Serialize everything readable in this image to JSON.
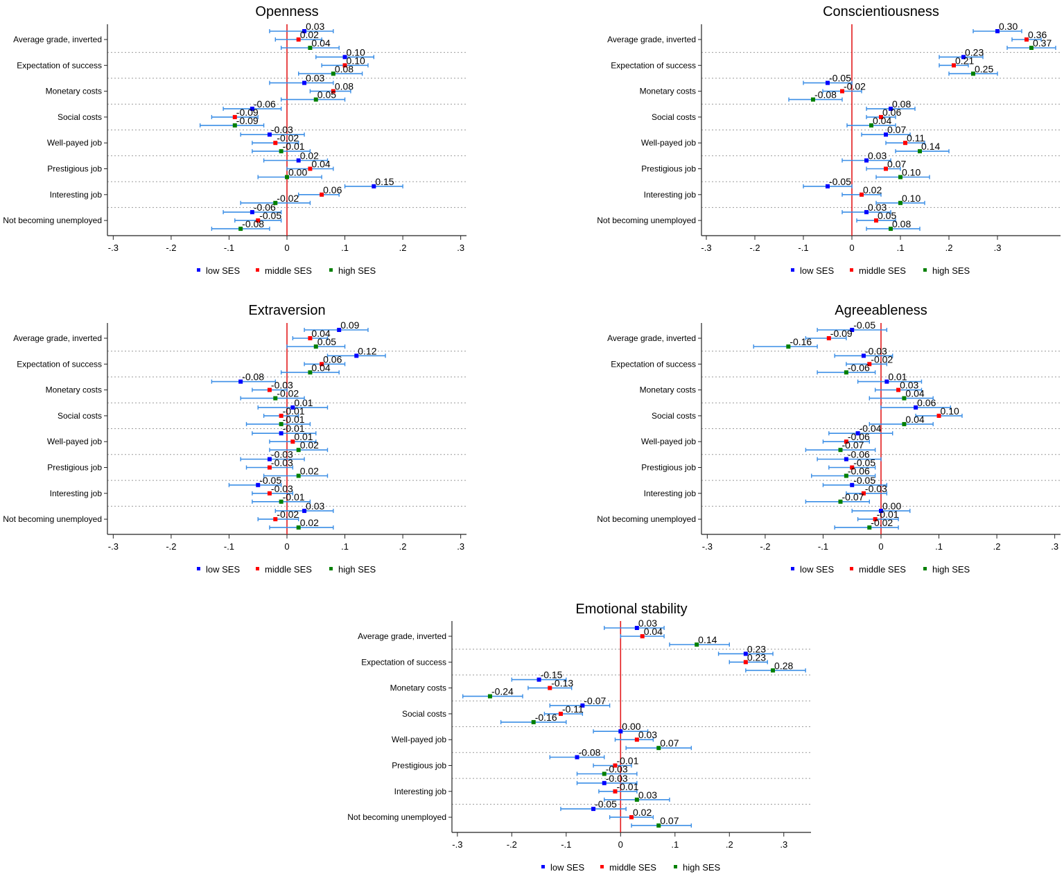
{
  "series_colors": {
    "low SES": "#0000ff",
    "middle SES": "#ff0000",
    "high SES": "#008000"
  },
  "ci_color": "#3a8ee6",
  "zero_line_color": "#e31a1c",
  "chart_data": [
    {
      "type": "scatter",
      "title": "Openness",
      "categories": [
        "Average grade, inverted",
        "Expectation of success",
        "Monetary costs",
        "Social costs",
        "Well-payed job",
        "Prestigious job",
        "Interesting job",
        "Not becoming unemployed"
      ],
      "xticks": [
        "-.3",
        "-.2",
        "-.1",
        "0",
        ".1",
        ".2",
        ".3"
      ],
      "xtick_values": [
        -0.3,
        -0.2,
        -0.1,
        0,
        0.1,
        0.2,
        0.3
      ],
      "xlim": [
        -0.31,
        0.31
      ],
      "legend": [
        "low SES",
        "middle SES",
        "high SES"
      ],
      "legend_position": "bottom",
      "series": [
        {
          "name": "low SES",
          "values": [
            0.03,
            0.1,
            0.03,
            -0.06,
            -0.03,
            0.02,
            0.15,
            -0.06
          ],
          "ci": [
            [
              -0.03,
              0.08
            ],
            [
              0.05,
              0.15
            ],
            [
              -0.03,
              0.08
            ],
            [
              -0.11,
              -0.01
            ],
            [
              -0.08,
              0.03
            ],
            [
              -0.04,
              0.07
            ],
            [
              0.1,
              0.2
            ],
            [
              -0.11,
              -0.01
            ]
          ]
        },
        {
          "name": "middle SES",
          "values": [
            0.02,
            0.1,
            0.08,
            -0.09,
            -0.02,
            0.04,
            0.06,
            -0.05
          ],
          "ci": [
            [
              -0.02,
              0.06
            ],
            [
              0.06,
              0.14
            ],
            [
              0.04,
              0.11
            ],
            [
              -0.13,
              -0.05
            ],
            [
              -0.06,
              0.02
            ],
            [
              0.0,
              0.08
            ],
            [
              0.02,
              0.09
            ],
            [
              -0.09,
              -0.01
            ]
          ]
        },
        {
          "name": "high SES",
          "values": [
            0.04,
            0.08,
            0.05,
            -0.09,
            -0.01,
            0.0,
            -0.02,
            -0.08
          ],
          "ci": [
            [
              -0.01,
              0.09
            ],
            [
              0.02,
              0.13
            ],
            [
              -0.01,
              0.1
            ],
            [
              -0.15,
              -0.04
            ],
            [
              -0.06,
              0.04
            ],
            [
              -0.05,
              0.06
            ],
            [
              -0.08,
              0.04
            ],
            [
              -0.13,
              -0.03
            ]
          ]
        }
      ]
    },
    {
      "type": "scatter",
      "title": "Conscientiousness",
      "categories": [
        "Average grade, inverted",
        "Expectation of success",
        "Monetary costs",
        "Social costs",
        "Well-payed job",
        "Prestigious job",
        "Interesting job",
        "Not becoming unemployed"
      ],
      "xticks": [
        "-.3",
        "-.2",
        "-.1",
        "0",
        ".1",
        ".2",
        ".3"
      ],
      "xtick_values": [
        -0.3,
        -0.2,
        -0.1,
        0,
        0.1,
        0.2,
        0.3
      ],
      "xlim": [
        -0.31,
        0.43
      ],
      "legend": [
        "low SES",
        "middle SES",
        "high SES"
      ],
      "legend_position": "bottom",
      "series": [
        {
          "name": "low SES",
          "values": [
            0.3,
            0.23,
            -0.05,
            0.08,
            0.07,
            0.03,
            -0.05,
            0.03
          ],
          "ci": [
            [
              0.25,
              0.35
            ],
            [
              0.18,
              0.27
            ],
            [
              -0.1,
              0.0
            ],
            [
              0.03,
              0.13
            ],
            [
              0.02,
              0.12
            ],
            [
              -0.02,
              0.08
            ],
            [
              -0.1,
              0.0
            ],
            [
              -0.02,
              0.08
            ]
          ]
        },
        {
          "name": "middle SES",
          "values": [
            0.36,
            0.21,
            -0.02,
            0.06,
            0.11,
            0.07,
            0.02,
            0.05
          ],
          "ci": [
            [
              0.33,
              0.39
            ],
            [
              0.18,
              0.24
            ],
            [
              -0.06,
              0.02
            ],
            [
              0.03,
              0.09
            ],
            [
              0.07,
              0.15
            ],
            [
              0.03,
              0.1
            ],
            [
              -0.02,
              0.06
            ],
            [
              0.01,
              0.09
            ]
          ]
        },
        {
          "name": "high SES",
          "values": [
            0.37,
            0.25,
            -0.08,
            0.04,
            0.14,
            0.1,
            0.1,
            0.08
          ],
          "ci": [
            [
              0.32,
              0.42
            ],
            [
              0.2,
              0.3
            ],
            [
              -0.13,
              -0.02
            ],
            [
              -0.01,
              0.09
            ],
            [
              0.09,
              0.2
            ],
            [
              0.05,
              0.16
            ],
            [
              0.05,
              0.15
            ],
            [
              0.03,
              0.14
            ]
          ]
        }
      ]
    },
    {
      "type": "scatter",
      "title": "Extraversion",
      "categories": [
        "Average grade, inverted",
        "Expectation of success",
        "Monetary costs",
        "Social costs",
        "Well-payed job",
        "Prestigious job",
        "Interesting job",
        "Not becoming unemployed"
      ],
      "xticks": [
        "-.3",
        "-.2",
        "-.1",
        "0",
        ".1",
        ".2",
        ".3"
      ],
      "xtick_values": [
        -0.3,
        -0.2,
        -0.1,
        0,
        0.1,
        0.2,
        0.3
      ],
      "xlim": [
        -0.31,
        0.31
      ],
      "legend": [
        "low SES",
        "middle SES",
        "high SES"
      ],
      "legend_position": "bottom",
      "series": [
        {
          "name": "low SES",
          "values": [
            0.09,
            0.12,
            -0.08,
            0.01,
            -0.01,
            -0.03,
            -0.05,
            0.03
          ],
          "ci": [
            [
              0.03,
              0.14
            ],
            [
              0.07,
              0.17
            ],
            [
              -0.13,
              -0.02
            ],
            [
              -0.05,
              0.07
            ],
            [
              -0.06,
              0.05
            ],
            [
              -0.08,
              0.03
            ],
            [
              -0.1,
              -0.01
            ],
            [
              -0.02,
              0.08
            ]
          ]
        },
        {
          "name": "middle SES",
          "values": [
            0.04,
            0.06,
            -0.03,
            -0.01,
            0.01,
            -0.03,
            -0.03,
            -0.02
          ],
          "ci": [
            [
              0.01,
              0.07
            ],
            [
              0.03,
              0.1
            ],
            [
              -0.06,
              0.0
            ],
            [
              -0.04,
              0.02
            ],
            [
              -0.03,
              0.05
            ],
            [
              -0.07,
              0.01
            ],
            [
              -0.06,
              0.01
            ],
            [
              -0.05,
              0.02
            ]
          ]
        },
        {
          "name": "high SES",
          "values": [
            0.05,
            0.04,
            -0.02,
            -0.01,
            0.02,
            0.02,
            -0.01,
            0.02
          ],
          "ci": [
            [
              0.0,
              0.1
            ],
            [
              -0.01,
              0.09
            ],
            [
              -0.08,
              0.03
            ],
            [
              -0.07,
              0.04
            ],
            [
              -0.03,
              0.07
            ],
            [
              -0.04,
              0.07
            ],
            [
              -0.06,
              0.04
            ],
            [
              -0.03,
              0.08
            ]
          ]
        }
      ]
    },
    {
      "type": "scatter",
      "title": "Agreeableness",
      "categories": [
        "Average grade, inverted",
        "Expectation of success",
        "Monetary costs",
        "Social costs",
        "Well-payed job",
        "Prestigious job",
        "Interesting job",
        "Not becoming unemployed"
      ],
      "xticks": [
        "-.3",
        "-.2",
        "-.1",
        "0",
        ".1",
        ".2",
        ".3"
      ],
      "xtick_values": [
        -0.3,
        -0.2,
        -0.1,
        0,
        0.1,
        0.2,
        0.3
      ],
      "xlim": [
        -0.31,
        0.31
      ],
      "legend": [
        "low SES",
        "middle SES",
        "high SES"
      ],
      "legend_position": "bottom",
      "series": [
        {
          "name": "low SES",
          "values": [
            -0.05,
            -0.03,
            0.01,
            0.06,
            -0.04,
            -0.06,
            -0.05,
            0.0
          ],
          "ci": [
            [
              -0.11,
              0.01
            ],
            [
              -0.08,
              0.02
            ],
            [
              -0.04,
              0.07
            ],
            [
              0.0,
              0.12
            ],
            [
              -0.09,
              0.02
            ],
            [
              -0.11,
              0.0
            ],
            [
              -0.1,
              0.01
            ],
            [
              -0.05,
              0.05
            ]
          ]
        },
        {
          "name": "middle SES",
          "values": [
            -0.09,
            -0.02,
            0.03,
            0.1,
            -0.06,
            -0.05,
            -0.03,
            -0.01
          ],
          "ci": [
            [
              -0.13,
              -0.06
            ],
            [
              -0.06,
              0.01
            ],
            [
              -0.01,
              0.07
            ],
            [
              0.06,
              0.14
            ],
            [
              -0.1,
              -0.02
            ],
            [
              -0.09,
              -0.01
            ],
            [
              -0.06,
              0.01
            ],
            [
              -0.04,
              0.03
            ]
          ]
        },
        {
          "name": "high SES",
          "values": [
            -0.16,
            -0.06,
            0.04,
            0.04,
            -0.07,
            -0.06,
            -0.07,
            -0.02
          ],
          "ci": [
            [
              -0.22,
              -0.11
            ],
            [
              -0.11,
              -0.01
            ],
            [
              -0.02,
              0.09
            ],
            [
              -0.02,
              0.09
            ],
            [
              -0.13,
              -0.01
            ],
            [
              -0.12,
              -0.01
            ],
            [
              -0.13,
              -0.02
            ],
            [
              -0.08,
              0.03
            ]
          ]
        }
      ]
    },
    {
      "type": "scatter",
      "title": "Emotional stability",
      "categories": [
        "Average grade, inverted",
        "Expectation of success",
        "Monetary costs",
        "Social costs",
        "Well-payed job",
        "Prestigious job",
        "Interesting job",
        "Not becoming unemployed"
      ],
      "xticks": [
        "-.3",
        "-.2",
        "-.1",
        "0",
        ".1",
        ".2",
        ".3"
      ],
      "xtick_values": [
        -0.3,
        -0.2,
        -0.1,
        0,
        0.1,
        0.2,
        0.3
      ],
      "xlim": [
        -0.31,
        0.35
      ],
      "legend": [
        "low SES",
        "middle SES",
        "high SES"
      ],
      "legend_position": "bottom",
      "series": [
        {
          "name": "low SES",
          "values": [
            0.03,
            0.23,
            -0.15,
            -0.07,
            0.0,
            -0.08,
            -0.03,
            -0.05
          ],
          "ci": [
            [
              -0.03,
              0.08
            ],
            [
              0.18,
              0.28
            ],
            [
              -0.2,
              -0.1
            ],
            [
              -0.13,
              -0.02
            ],
            [
              -0.05,
              0.05
            ],
            [
              -0.13,
              -0.03
            ],
            [
              -0.08,
              0.03
            ],
            [
              -0.11,
              0.01
            ]
          ]
        },
        {
          "name": "middle SES",
          "values": [
            0.04,
            0.23,
            -0.13,
            -0.11,
            0.03,
            -0.01,
            -0.01,
            0.02
          ],
          "ci": [
            [
              0.0,
              0.08
            ],
            [
              0.2,
              0.27
            ],
            [
              -0.17,
              -0.09
            ],
            [
              -0.14,
              -0.07
            ],
            [
              -0.01,
              0.06
            ],
            [
              -0.05,
              0.02
            ],
            [
              -0.04,
              0.03
            ],
            [
              -0.02,
              0.06
            ]
          ]
        },
        {
          "name": "high SES",
          "values": [
            0.14,
            0.28,
            -0.24,
            -0.16,
            0.07,
            -0.03,
            0.03,
            0.07
          ],
          "ci": [
            [
              0.09,
              0.2
            ],
            [
              0.23,
              0.34
            ],
            [
              -0.29,
              -0.18
            ],
            [
              -0.22,
              -0.1
            ],
            [
              0.01,
              0.13
            ],
            [
              -0.08,
              0.03
            ],
            [
              -0.03,
              0.09
            ],
            [
              0.02,
              0.13
            ]
          ]
        }
      ]
    }
  ]
}
